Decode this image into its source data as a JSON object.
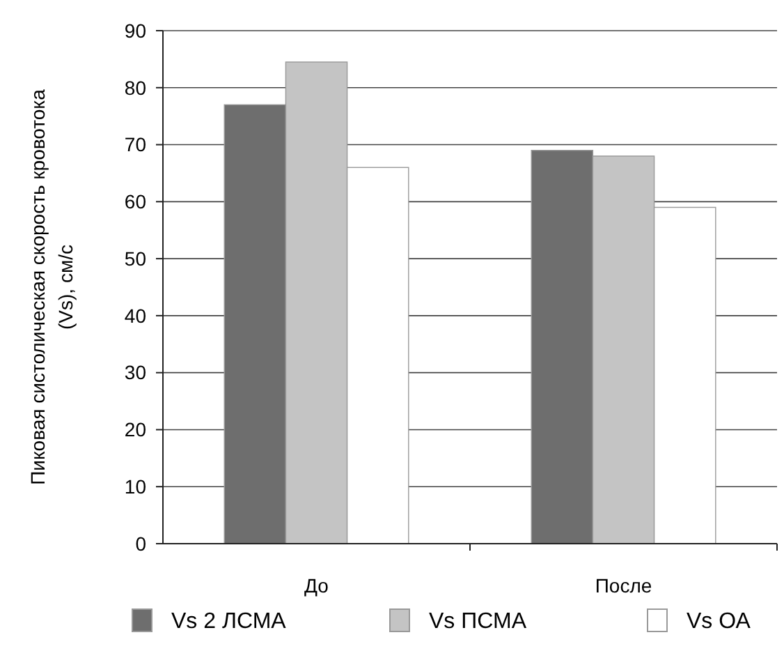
{
  "chart_data": {
    "type": "bar",
    "ylabel": "Пиковая систолическая скорость кровотока (Vs), см/с",
    "categories": [
      "До",
      "После"
    ],
    "series": [
      {
        "name": "Vs 2 ЛСМА",
        "color": "#6e6e6e",
        "values": [
          77,
          69
        ]
      },
      {
        "name": "Vs ПСМА",
        "color": "#c4c4c4",
        "values": [
          84.5,
          68
        ]
      },
      {
        "name": "Vs ОА",
        "color": "#ffffff",
        "values": [
          66,
          59
        ]
      }
    ],
    "ylim": [
      0,
      90
    ],
    "yticks": [
      0,
      10,
      20,
      30,
      40,
      50,
      60,
      70,
      80,
      90
    ],
    "grid": "y",
    "legend": "bottom"
  }
}
